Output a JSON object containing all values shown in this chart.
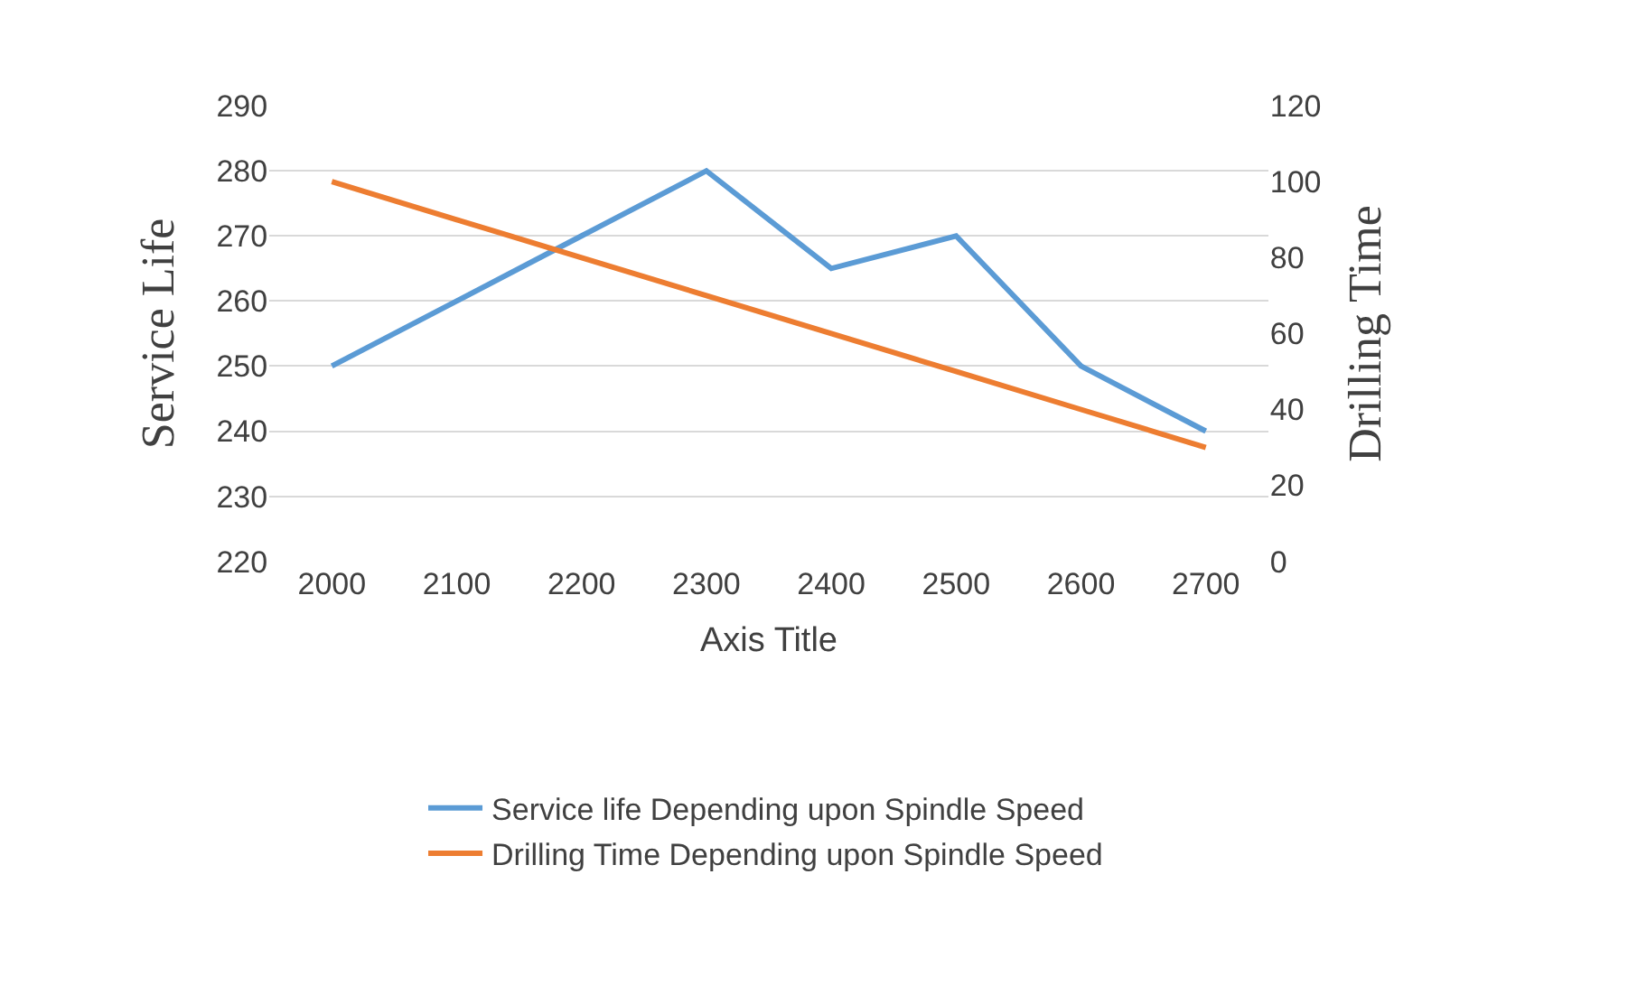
{
  "chart_data": {
    "type": "line",
    "xlabel": "Axis Title",
    "ylabel": "Service Life",
    "y2label": "Drilling Time",
    "categories": [
      "2000",
      "2100",
      "2200",
      "2300",
      "2400",
      "2500",
      "2600",
      "2700"
    ],
    "series": [
      {
        "name": "Service life Depending upon Spindle Speed",
        "color": "#5b9bd5",
        "values": [
          250,
          260,
          270,
          280,
          265,
          270,
          250,
          240
        ]
      },
      {
        "name": "Drilling Time Depending upon Spindle Speed",
        "color": "#ed7d31",
        "values": [
          100,
          90,
          80,
          70,
          60,
          50,
          40,
          30
        ],
        "axis": "y2"
      }
    ],
    "ylim": [
      220,
      290
    ],
    "yticks": [
      220,
      230,
      240,
      250,
      260,
      270,
      280,
      290
    ],
    "y2lim": [
      0,
      120
    ],
    "y2ticks": [
      0,
      20,
      40,
      60,
      80,
      100,
      120
    ],
    "grid": "y",
    "legend": "bottom",
    "marker": "none",
    "line_style": "solid"
  }
}
